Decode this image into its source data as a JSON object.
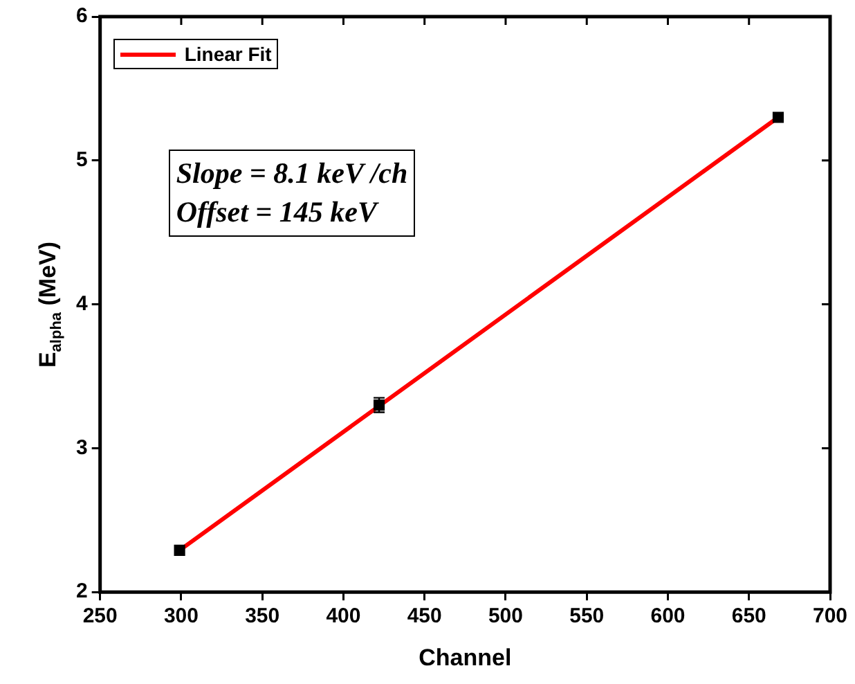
{
  "chart_data": {
    "type": "scatter",
    "xlabel": "Channel",
    "ylabel": "E$_{alpha}$ (MeV)",
    "xlim": [
      250,
      700
    ],
    "xticks": [
      250,
      300,
      350,
      400,
      450,
      500,
      550,
      600,
      650,
      700
    ],
    "ylim": [
      2,
      6
    ],
    "yticks": [
      2,
      3,
      4,
      5,
      6
    ],
    "grid": false,
    "legend": "top left",
    "marker": "square",
    "annotations": [
      "Slope = 8.1 keV /ch",
      "Offset = 145 keV"
    ],
    "series": [
      {
        "color": "#000000",
        "x": [
          299,
          422,
          668
        ],
        "values": [
          2.29,
          3.3,
          5.3
        ],
        "errors": [
          null,
          0.05,
          null
        ]
      },
      {
        "type": "line",
        "name": "Linear Fit",
        "color": "#ff0000",
        "x": [
          299,
          668
        ],
        "values": [
          2.29,
          5.3
        ],
        "marker": "none"
      }
    ]
  }
}
